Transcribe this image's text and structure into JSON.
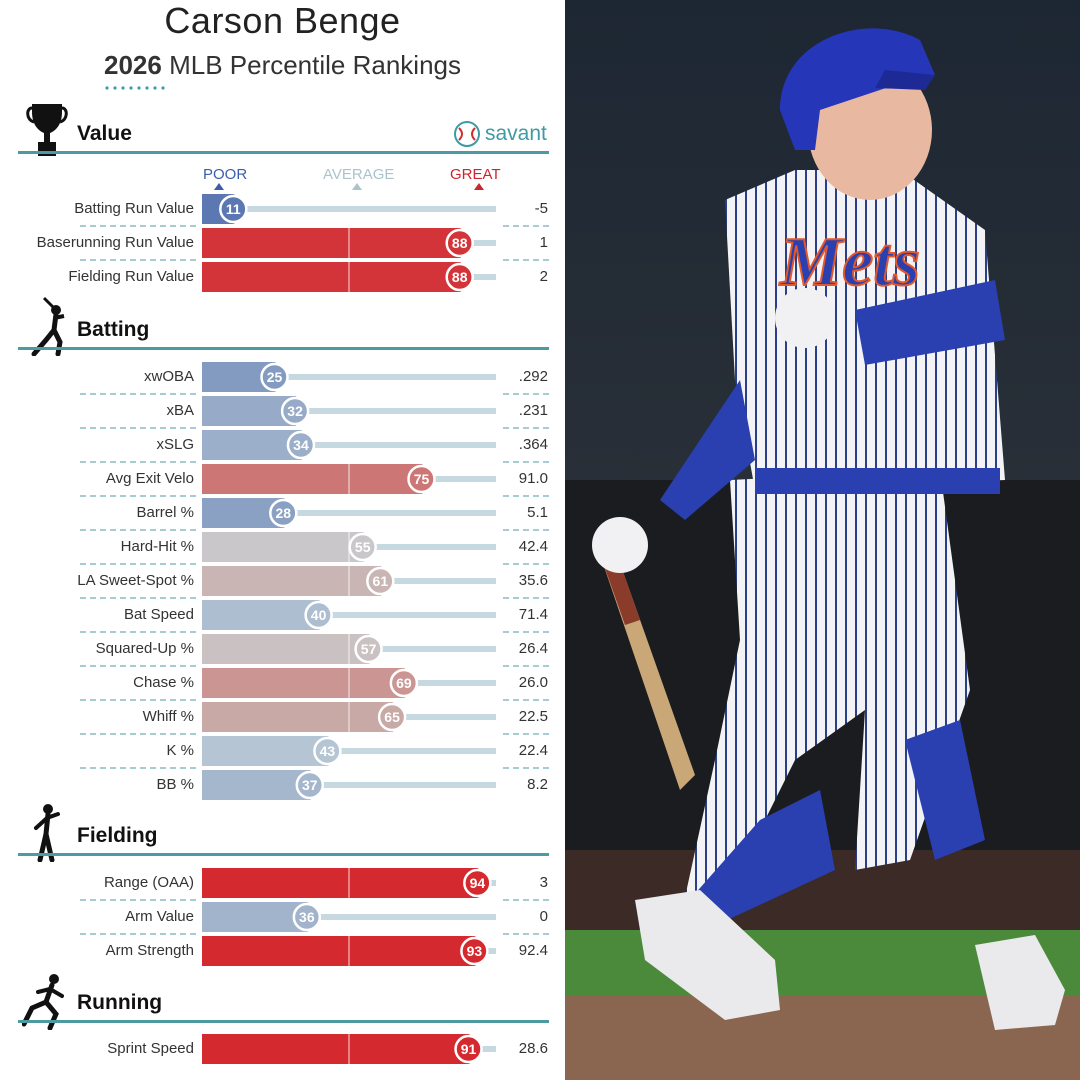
{
  "header": {
    "player_name": "Carson Benge",
    "year": "2026",
    "subtitle_rest": "MLB Percentile Rankings",
    "brand": "savant",
    "scale_labels": {
      "poor": "POOR",
      "average": "AVERAGE",
      "great": "GREAT"
    }
  },
  "colors": {
    "accent_line": "#4d9aa3",
    "poor": "#3d5da8",
    "great": "#d42a2f",
    "track": "#c7d9e0"
  },
  "sections": [
    {
      "title": "Value",
      "icon": "trophy-icon"
    },
    {
      "title": "Batting",
      "icon": "batter-icon"
    },
    {
      "title": "Fielding",
      "icon": "fielder-icon"
    },
    {
      "title": "Running",
      "icon": "runner-icon"
    }
  ],
  "chart_data": {
    "type": "bar",
    "title": "2026 MLB Percentile Rankings",
    "xlim": [
      0,
      100
    ],
    "groups": [
      {
        "section": "Value",
        "metrics": [
          {
            "label": "Batting Run Value",
            "percentile": 11,
            "value": "-5"
          },
          {
            "label": "Baserunning Run Value",
            "percentile": 88,
            "value": "1"
          },
          {
            "label": "Fielding Run Value",
            "percentile": 88,
            "value": "2"
          }
        ]
      },
      {
        "section": "Batting",
        "metrics": [
          {
            "label": "xwOBA",
            "percentile": 25,
            "value": ".292"
          },
          {
            "label": "xBA",
            "percentile": 32,
            "value": ".231"
          },
          {
            "label": "xSLG",
            "percentile": 34,
            "value": ".364"
          },
          {
            "label": "Avg Exit Velo",
            "percentile": 75,
            "value": "91.0"
          },
          {
            "label": "Barrel %",
            "percentile": 28,
            "value": "5.1"
          },
          {
            "label": "Hard-Hit %",
            "percentile": 55,
            "value": "42.4"
          },
          {
            "label": "LA Sweet-Spot %",
            "percentile": 61,
            "value": "35.6"
          },
          {
            "label": "Bat Speed",
            "percentile": 40,
            "value": "71.4"
          },
          {
            "label": "Squared-Up %",
            "percentile": 57,
            "value": "26.4"
          },
          {
            "label": "Chase %",
            "percentile": 69,
            "value": "26.0"
          },
          {
            "label": "Whiff %",
            "percentile": 65,
            "value": "22.5"
          },
          {
            "label": "K %",
            "percentile": 43,
            "value": "22.4"
          },
          {
            "label": "BB %",
            "percentile": 37,
            "value": "8.2"
          }
        ]
      },
      {
        "section": "Fielding",
        "metrics": [
          {
            "label": "Range (OAA)",
            "percentile": 94,
            "value": "3"
          },
          {
            "label": "Arm Value",
            "percentile": 36,
            "value": "0"
          },
          {
            "label": "Arm Strength",
            "percentile": 93,
            "value": "92.4"
          }
        ]
      },
      {
        "section": "Running",
        "metrics": [
          {
            "label": "Sprint Speed",
            "percentile": 91,
            "value": "28.6"
          }
        ]
      }
    ]
  },
  "photo": {
    "jersey_text": "Mets",
    "description_label": "player-batting-photo"
  }
}
